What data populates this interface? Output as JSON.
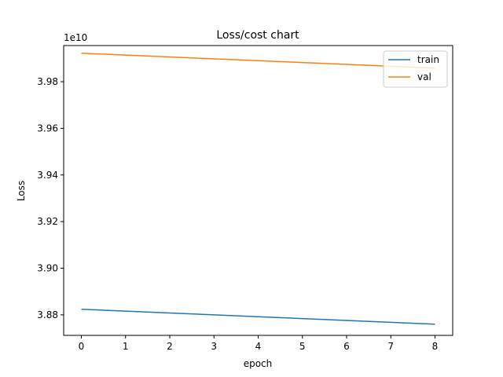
{
  "chart_data": {
    "type": "line",
    "title": "Loss/cost chart",
    "xlabel": "epoch",
    "ylabel": "Loss",
    "y_offset_label": "1e10",
    "x": [
      0,
      1,
      2,
      3,
      4,
      5,
      6,
      7,
      8
    ],
    "xlim": [
      -0.4,
      8.4
    ],
    "ylim": [
      3.8712,
      3.9955
    ],
    "x_ticks": [
      0,
      1,
      2,
      3,
      4,
      5,
      6,
      7,
      8
    ],
    "y_ticks": [
      3.88,
      3.9,
      3.92,
      3.94,
      3.96,
      3.98
    ],
    "y_tick_labels": [
      "3.88",
      "3.90",
      "3.92",
      "3.94",
      "3.96",
      "3.98"
    ],
    "grid": false,
    "legend_position": "top-right",
    "series": [
      {
        "name": "train",
        "color": "#1f77b4",
        "values": [
          3.8824,
          3.8816,
          3.8808,
          3.88,
          3.8792,
          3.8784,
          3.8776,
          3.8768,
          3.876
        ]
      },
      {
        "name": "val",
        "color": "#ff7f0e",
        "values": [
          3.9922,
          3.9914,
          3.9906,
          3.9898,
          3.989,
          3.9882,
          3.9874,
          3.9866,
          3.9858
        ]
      }
    ]
  }
}
